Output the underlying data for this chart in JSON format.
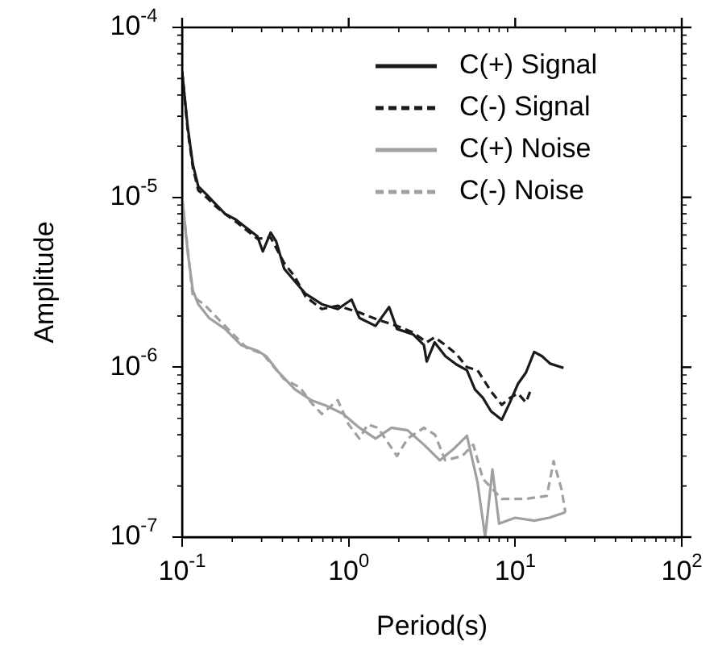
{
  "chart_data": {
    "type": "line",
    "xlabel": "Period(s)",
    "ylabel": "Amplitude",
    "log": "xy",
    "grid": false,
    "legend": "top right",
    "xlim": [
      0.1,
      100
    ],
    "ylim": [
      1e-07,
      0.0001
    ],
    "xticks": [
      {
        "value": 0.1,
        "label": "10$^{-1}$"
      },
      {
        "value": 1,
        "label": "10$^{0}$"
      },
      {
        "value": 10,
        "label": "10$^{1}$"
      },
      {
        "value": 100,
        "label": "10$^{2}$"
      }
    ],
    "yticks": [
      {
        "value": 1e-07,
        "label": "10$^{-7}$"
      },
      {
        "value": 1e-06,
        "label": "10$^{-6}$"
      },
      {
        "value": 1e-05,
        "label": "10$^{-5}$"
      },
      {
        "value": 0.0001,
        "label": "10$^{-4}$"
      }
    ],
    "series": [
      {
        "name": "C(+) Signal",
        "color": "#1a1a1a",
        "line_style": "solid",
        "x": [
          0.1,
          0.108,
          0.116,
          0.125,
          0.14,
          0.156,
          0.181,
          0.21,
          0.244,
          0.283,
          0.305,
          0.34,
          0.367,
          0.41,
          0.476,
          0.552,
          0.69,
          0.861,
          1.04,
          1.16,
          1.45,
          1.75,
          1.95,
          2.44,
          2.83,
          2.94,
          3.28,
          3.81,
          4.42,
          5.13,
          5.73,
          6.4,
          7.16,
          8.3,
          9.29,
          10.4,
          11.6,
          13,
          14.5,
          16.2,
          19.5
        ],
        "values": [
          5.5e-05,
          2.6e-05,
          1.56e-05,
          1.16e-05,
          1.04e-05,
          9.3e-06,
          8e-06,
          7.4e-06,
          6.6e-06,
          5.9e-06,
          4.8e-06,
          6.2e-06,
          5.5e-06,
          3.8e-06,
          3.2e-06,
          2.7e-06,
          2.35e-06,
          2.2e-06,
          2.5e-06,
          1.95e-06,
          1.75e-06,
          2.26e-06,
          1.68e-06,
          1.56e-06,
          1.35e-06,
          1.08e-06,
          1.4e-06,
          1.16e-06,
          1.04e-06,
          9.6e-07,
          7.4e-07,
          6.6e-07,
          5.5e-07,
          4.9e-07,
          6.2e-07,
          8e-07,
          9.3e-07,
          1.23e-06,
          1.16e-06,
          1.05e-06,
          9.9e-07
        ]
      },
      {
        "name": "C(-) Signal",
        "color": "#1a1a1a",
        "line_style": "dashed",
        "x": [
          0.1,
          0.108,
          0.116,
          0.125,
          0.14,
          0.156,
          0.181,
          0.21,
          0.244,
          0.283,
          0.34,
          0.41,
          0.476,
          0.552,
          0.69,
          0.861,
          1.16,
          1.5,
          1.95,
          2.44,
          2.94,
          3.28,
          3.81,
          4.42,
          5.13,
          5.94,
          7.16,
          8.3,
          9.29,
          10.4,
          11.6,
          12.5
        ],
        "values": [
          5.5e-05,
          2.5e-05,
          1.5e-05,
          1.1e-05,
          1e-05,
          9e-06,
          8e-06,
          7.2e-06,
          6.4e-06,
          5.7e-06,
          5.8e-06,
          4.1e-06,
          3.4e-06,
          2.6e-06,
          2.2e-06,
          2.3e-06,
          2.1e-06,
          1.9e-06,
          1.75e-06,
          1.6e-06,
          1.4e-06,
          1.5e-06,
          1.35e-06,
          1.2e-06,
          1e-06,
          9.6e-07,
          7.2e-07,
          6e-07,
          6.6e-07,
          7e-07,
          6.2e-07,
          7.5e-07
        ]
      },
      {
        "name": "C(+) Noise",
        "color": "#a0a0a0",
        "line_style": "solid",
        "x": [
          0.1,
          0.108,
          0.116,
          0.125,
          0.145,
          0.181,
          0.226,
          0.283,
          0.32,
          0.381,
          0.476,
          0.595,
          0.743,
          0.929,
          1.16,
          1.45,
          1.81,
          2.26,
          2.83,
          3.53,
          4.26,
          5.13,
          5.94,
          6.6,
          7.3,
          8.0,
          10,
          13,
          16,
          20
        ],
        "values": [
          1e-05,
          4.75e-06,
          2.83e-06,
          2.35e-06,
          1.95e-06,
          1.68e-06,
          1.35e-06,
          1.25e-06,
          1.16e-06,
          9.3e-07,
          7.4e-07,
          6.4e-07,
          5.9e-07,
          5.3e-07,
          4.4e-07,
          3.8e-07,
          4.4e-07,
          4.25e-07,
          3.5e-07,
          2.83e-07,
          3.3e-07,
          3.95e-07,
          2.1e-07,
          1e-07,
          2.5e-07,
          1.2e-07,
          1.3e-07,
          1.25e-07,
          1.3e-07,
          1.4e-07
        ]
      },
      {
        "name": "C(-) Noise",
        "color": "#a0a0a0",
        "line_style": "dashed",
        "x": [
          0.1,
          0.116,
          0.135,
          0.181,
          0.244,
          0.305,
          0.41,
          0.51,
          0.595,
          0.69,
          0.86,
          1.0,
          1.16,
          1.3,
          1.5,
          1.95,
          2.26,
          2.83,
          3.3,
          3.8,
          4.8,
          5.6,
          6.4,
          8.3,
          11.6,
          15.5,
          17,
          19,
          20
        ],
        "values": [
          1e-05,
          2.6e-06,
          2.35e-06,
          1.75e-06,
          1.3e-06,
          1.2e-06,
          8.5e-07,
          7.6e-07,
          6.2e-07,
          5.3e-07,
          6.4e-07,
          4.6e-07,
          3.8e-07,
          4.6e-07,
          4.4e-07,
          3e-07,
          3.8e-07,
          4.4e-07,
          4e-07,
          2.83e-07,
          3e-07,
          3.5e-07,
          2.2e-07,
          1.68e-07,
          1.68e-07,
          1.75e-07,
          2.8e-07,
          1.9e-07,
          1.4e-07
        ]
      }
    ]
  }
}
